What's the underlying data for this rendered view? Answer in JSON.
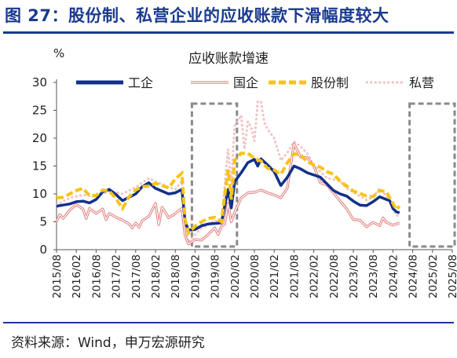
{
  "figure_title": "图 27：股份制、私营企业的应收账款下滑幅度较大",
  "source": "资料来源：Wind，申万宏源研究",
  "colors": {
    "gongqi": "#12308a",
    "guoqi": "#e07b7b",
    "gufen": "#f7c31a",
    "siying": "#f3c3c3",
    "highlight": "#8a8a8a",
    "frame": "#1a3a8f"
  },
  "chart_data": {
    "type": "line",
    "title": "应收账款增速",
    "ylabel": "%",
    "ylim": [
      0,
      30
    ],
    "yticks": [
      "0",
      "5",
      "10",
      "15",
      "20",
      "25",
      "30"
    ],
    "xticks": [
      "2015/08",
      "2016/02",
      "2016/08",
      "2017/02",
      "2017/08",
      "2018/02",
      "2018/08",
      "2019/02",
      "2019/08",
      "2020/02",
      "2020/08",
      "2021/02",
      "2021/08",
      "2022/02",
      "2022/08",
      "2023/02",
      "2023/08",
      "2024/02",
      "2024/08",
      "2025/02",
      "2025/08"
    ],
    "highlights": [
      [
        "2019/02",
        "2020/02"
      ],
      [
        "2024/08",
        "2025/08"
      ]
    ],
    "series": [
      {
        "name": "工企",
        "style": "solid-thick",
        "color": "#12308a",
        "values": [
          [
            0,
            7.8
          ],
          [
            2,
            8.0
          ],
          [
            4,
            8.2
          ],
          [
            6,
            8.6
          ],
          [
            8,
            8.7
          ],
          [
            10,
            8.4
          ],
          [
            12,
            9.0
          ],
          [
            14,
            10.4
          ],
          [
            16,
            10.8
          ],
          [
            18,
            9.9
          ],
          [
            20,
            8.8
          ],
          [
            22,
            9.4
          ],
          [
            24,
            10.0
          ],
          [
            26,
            11.3
          ],
          [
            28,
            12.0
          ],
          [
            30,
            11.0
          ],
          [
            34,
            10.0
          ],
          [
            36,
            10.2
          ],
          [
            38,
            10.8
          ],
          [
            39,
            5.0
          ],
          [
            40,
            3.5
          ],
          [
            42,
            3.6
          ],
          [
            44,
            4.3
          ],
          [
            46,
            4.6
          ],
          [
            48,
            4.7
          ],
          [
            50,
            4.8
          ],
          [
            52,
            10.8
          ],
          [
            53,
            7.5
          ],
          [
            54,
            12.2
          ],
          [
            56,
            13.8
          ],
          [
            58,
            15.6
          ],
          [
            60,
            16.2
          ],
          [
            61,
            15.0
          ],
          [
            62,
            16.3
          ],
          [
            64,
            15.2
          ],
          [
            66,
            14.0
          ],
          [
            68,
            11.5
          ],
          [
            70,
            13.0
          ],
          [
            72,
            15.0
          ],
          [
            74,
            14.5
          ],
          [
            76,
            13.8
          ],
          [
            78,
            13.4
          ],
          [
            80,
            13.0
          ],
          [
            82,
            11.8
          ],
          [
            84,
            10.6
          ],
          [
            86,
            10.0
          ],
          [
            88,
            9.6
          ],
          [
            90,
            8.7
          ],
          [
            92,
            8.0
          ],
          [
            94,
            7.9
          ],
          [
            96,
            8.6
          ],
          [
            98,
            9.5
          ],
          [
            100,
            9.0
          ],
          [
            101,
            8.8
          ],
          [
            102,
            7.4
          ],
          [
            103,
            6.8
          ],
          [
            104,
            6.6
          ]
        ]
      },
      {
        "name": "国企",
        "style": "double",
        "color": "#e07b7b",
        "values": [
          [
            0,
            5.0
          ],
          [
            1,
            6.3
          ],
          [
            2,
            5.6
          ],
          [
            4,
            7.1
          ],
          [
            6,
            8.1
          ],
          [
            8,
            7.3
          ],
          [
            9,
            5.6
          ],
          [
            10,
            7.4
          ],
          [
            12,
            6.5
          ],
          [
            14,
            7.3
          ],
          [
            15,
            5.4
          ],
          [
            16,
            6.5
          ],
          [
            18,
            5.8
          ],
          [
            20,
            5.3
          ],
          [
            22,
            4.6
          ],
          [
            23,
            3.9
          ],
          [
            24,
            4.8
          ],
          [
            25,
            4.0
          ],
          [
            26,
            5.2
          ],
          [
            28,
            6.0
          ],
          [
            30,
            8.3
          ],
          [
            31,
            4.5
          ],
          [
            32,
            7.6
          ],
          [
            34,
            5.7
          ],
          [
            36,
            6.5
          ],
          [
            38,
            7.4
          ],
          [
            39,
            2.5
          ],
          [
            40,
            1.0
          ],
          [
            42,
            1.8
          ],
          [
            44,
            1.7
          ],
          [
            46,
            2.7
          ],
          [
            48,
            3.9
          ],
          [
            49,
            2.7
          ],
          [
            50,
            4.2
          ],
          [
            51,
            4.6
          ],
          [
            52,
            8.3
          ],
          [
            53,
            5.0
          ],
          [
            54,
            6.7
          ],
          [
            56,
            9.3
          ],
          [
            58,
            10.2
          ],
          [
            60,
            10.3
          ],
          [
            62,
            10.7
          ],
          [
            64,
            10.2
          ],
          [
            66,
            9.8
          ],
          [
            68,
            9.3
          ],
          [
            70,
            11.1
          ],
          [
            72,
            19.0
          ],
          [
            74,
            16.6
          ],
          [
            76,
            16.5
          ],
          [
            78,
            15.0
          ],
          [
            80,
            12.0
          ],
          [
            82,
            11.6
          ],
          [
            84,
            10.2
          ],
          [
            86,
            8.7
          ],
          [
            88,
            7.3
          ],
          [
            90,
            5.4
          ],
          [
            92,
            5.3
          ],
          [
            94,
            4.1
          ],
          [
            96,
            4.9
          ],
          [
            98,
            4.3
          ],
          [
            99,
            5.7
          ],
          [
            100,
            4.9
          ],
          [
            102,
            4.4
          ],
          [
            104,
            4.8
          ]
        ]
      },
      {
        "name": "股份制",
        "style": "dashed-thick",
        "color": "#f7c31a",
        "values": [
          [
            0,
            9.3
          ],
          [
            2,
            9.4
          ],
          [
            4,
            10.0
          ],
          [
            6,
            10.6
          ],
          [
            8,
            11.0
          ],
          [
            10,
            9.7
          ],
          [
            12,
            9.7
          ],
          [
            14,
            10.7
          ],
          [
            16,
            10.5
          ],
          [
            18,
            9.2
          ],
          [
            20,
            7.4
          ],
          [
            22,
            9.5
          ],
          [
            24,
            10.7
          ],
          [
            26,
            11.3
          ],
          [
            28,
            11.4
          ],
          [
            30,
            11.9
          ],
          [
            32,
            11.5
          ],
          [
            34,
            11.1
          ],
          [
            36,
            12.7
          ],
          [
            38,
            13.7
          ],
          [
            39,
            5.4
          ],
          [
            40,
            3.0
          ],
          [
            42,
            4.2
          ],
          [
            44,
            5.0
          ],
          [
            46,
            5.6
          ],
          [
            48,
            5.8
          ],
          [
            50,
            5.0
          ],
          [
            52,
            14.4
          ],
          [
            53,
            9.0
          ],
          [
            54,
            16.0
          ],
          [
            56,
            17.3
          ],
          [
            58,
            17.3
          ],
          [
            60,
            16.4
          ],
          [
            62,
            15.9
          ],
          [
            64,
            14.6
          ],
          [
            66,
            14.3
          ],
          [
            68,
            13.5
          ],
          [
            70,
            15.6
          ],
          [
            72,
            17.2
          ],
          [
            74,
            17.0
          ],
          [
            76,
            15.8
          ],
          [
            78,
            15.2
          ],
          [
            80,
            14.8
          ],
          [
            82,
            14.0
          ],
          [
            84,
            13.5
          ],
          [
            86,
            12.3
          ],
          [
            88,
            11.4
          ],
          [
            90,
            10.5
          ],
          [
            92,
            10.1
          ],
          [
            94,
            9.6
          ],
          [
            96,
            9.5
          ],
          [
            98,
            10.6
          ],
          [
            100,
            10.4
          ],
          [
            102,
            8.3
          ],
          [
            103,
            7.2
          ],
          [
            104,
            7.8
          ]
        ]
      },
      {
        "name": "私营",
        "style": "dotted",
        "color": "#f3c3c3",
        "values": [
          [
            0,
            8.0
          ],
          [
            4,
            9.3
          ],
          [
            8,
            9.8
          ],
          [
            12,
            9.5
          ],
          [
            16,
            10.5
          ],
          [
            20,
            10.0
          ],
          [
            24,
            11.2
          ],
          [
            26,
            12.0
          ],
          [
            28,
            12.8
          ],
          [
            30,
            12.2
          ],
          [
            32,
            11.7
          ],
          [
            34,
            11.2
          ],
          [
            36,
            10.8
          ],
          [
            38,
            12.3
          ],
          [
            39,
            4.0
          ],
          [
            40,
            1.3
          ],
          [
            42,
            2.7
          ],
          [
            44,
            3.9
          ],
          [
            46,
            4.4
          ],
          [
            48,
            5.3
          ],
          [
            50,
            4.6
          ],
          [
            52,
            18.0
          ],
          [
            53,
            12.0
          ],
          [
            54,
            22.2
          ],
          [
            56,
            24.1
          ],
          [
            57,
            18.0
          ],
          [
            58,
            23.0
          ],
          [
            59,
            22.0
          ],
          [
            60,
            19.5
          ],
          [
            61,
            26.5
          ],
          [
            62,
            26.6
          ],
          [
            63,
            22.8
          ],
          [
            64,
            21.6
          ],
          [
            66,
            20.0
          ],
          [
            68,
            16.0
          ],
          [
            70,
            17.4
          ],
          [
            72,
            19.4
          ],
          [
            74,
            18.5
          ],
          [
            76,
            17.3
          ],
          [
            78,
            15.1
          ],
          [
            80,
            14.0
          ],
          [
            82,
            12.8
          ],
          [
            84,
            12.6
          ],
          [
            86,
            12.3
          ],
          [
            88,
            11.0
          ],
          [
            90,
            10.3
          ],
          [
            92,
            9.6
          ],
          [
            94,
            8.9
          ],
          [
            96,
            9.4
          ],
          [
            98,
            11.0
          ],
          [
            100,
            9.6
          ],
          [
            102,
            8.0
          ],
          [
            103,
            6.2
          ],
          [
            104,
            6.0
          ]
        ]
      }
    ],
    "legend_position": "top"
  }
}
